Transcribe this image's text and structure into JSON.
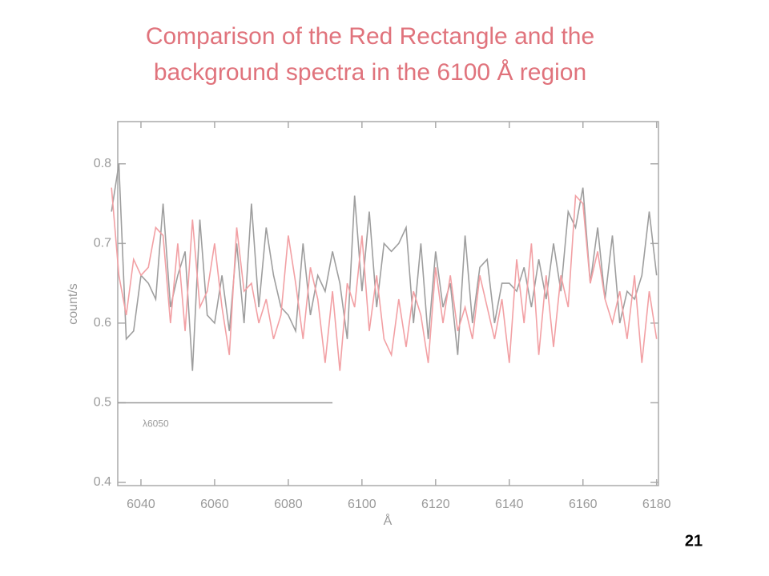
{
  "chart_data": {
    "type": "line",
    "title": [
      "Comparison of the Red Rectangle and the",
      "background spectra in the 6100 Å region"
    ],
    "x_label": "Å",
    "y_label": "count/s",
    "x": [
      6032,
      6034,
      6036,
      6038,
      6040,
      6042,
      6044,
      6046,
      6048,
      6050,
      6052,
      6054,
      6056,
      6058,
      6060,
      6062,
      6064,
      6066,
      6068,
      6070,
      6072,
      6074,
      6076,
      6078,
      6080,
      6082,
      6084,
      6086,
      6088,
      6090,
      6092,
      6094,
      6096,
      6098,
      6100,
      6102,
      6104,
      6106,
      6108,
      6110,
      6112,
      6114,
      6116,
      6118,
      6120,
      6122,
      6124,
      6126,
      6128,
      6130,
      6132,
      6134,
      6136,
      6138,
      6140,
      6142,
      6144,
      6146,
      6148,
      6150,
      6152,
      6154,
      6156,
      6158,
      6160,
      6162,
      6164,
      6166,
      6168,
      6170,
      6172,
      6174,
      6176,
      6178,
      6180
    ],
    "series": [
      {
        "color": "#9e9e9e",
        "values": [
          0.74,
          0.8,
          0.58,
          0.59,
          0.66,
          0.65,
          0.63,
          0.75,
          0.62,
          0.66,
          0.69,
          0.54,
          0.73,
          0.61,
          0.6,
          0.66,
          0.59,
          0.7,
          0.6,
          0.75,
          0.62,
          0.72,
          0.66,
          0.62,
          0.61,
          0.59,
          0.7,
          0.61,
          0.66,
          0.64,
          0.69,
          0.65,
          0.58,
          0.76,
          0.64,
          0.74,
          0.62,
          0.7,
          0.69,
          0.7,
          0.72,
          0.6,
          0.7,
          0.58,
          0.69,
          0.62,
          0.65,
          0.56,
          0.71,
          0.6,
          0.67,
          0.68,
          0.6,
          0.65,
          0.65,
          0.64,
          0.67,
          0.62,
          0.68,
          0.63,
          0.7,
          0.64,
          0.74,
          0.72,
          0.77,
          0.65,
          0.72,
          0.63,
          0.71,
          0.6,
          0.64,
          0.63,
          0.66,
          0.74,
          0.66
        ]
      },
      {
        "color": "#f2a0a4",
        "values": [
          0.77,
          0.66,
          0.61,
          0.68,
          0.66,
          0.67,
          0.72,
          0.71,
          0.6,
          0.7,
          0.59,
          0.73,
          0.62,
          0.64,
          0.7,
          0.62,
          0.56,
          0.72,
          0.64,
          0.65,
          0.6,
          0.63,
          0.58,
          0.61,
          0.71,
          0.65,
          0.58,
          0.67,
          0.63,
          0.55,
          0.64,
          0.54,
          0.65,
          0.62,
          0.71,
          0.59,
          0.66,
          0.58,
          0.56,
          0.63,
          0.57,
          0.64,
          0.61,
          0.55,
          0.67,
          0.6,
          0.66,
          0.59,
          0.62,
          0.58,
          0.66,
          0.62,
          0.58,
          0.63,
          0.55,
          0.68,
          0.6,
          0.7,
          0.56,
          0.66,
          0.57,
          0.66,
          0.62,
          0.76,
          0.75,
          0.65,
          0.69,
          0.63,
          0.6,
          0.64,
          0.58,
          0.66,
          0.55,
          0.64,
          0.58
        ]
      }
    ],
    "xlim": [
      6033.7,
      6180.5
    ],
    "ylim": [
      0.396,
      0.853
    ],
    "xticks": [
      6040,
      6060,
      6080,
      6100,
      6120,
      6140,
      6160,
      6180
    ],
    "yticks": [
      0.4,
      0.5,
      0.6,
      0.7,
      0.8
    ],
    "annotation": {
      "text": "λ6050",
      "y": 0.5,
      "x": [
        6033.7,
        6092
      ]
    }
  },
  "page_number": "21"
}
